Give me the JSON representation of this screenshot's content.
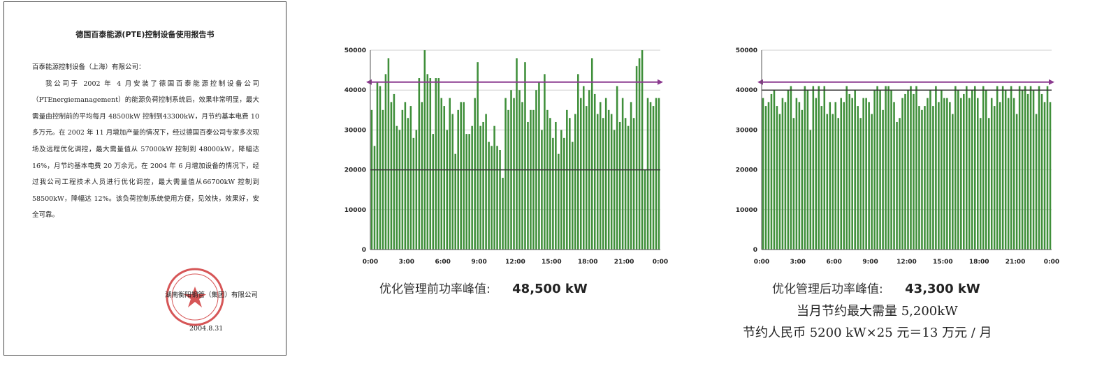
{
  "letter": {
    "title": "德国百泰能源(PTE)控制设备使用报告书",
    "greeting": "百泰能源控制设备（上海）有限公司：",
    "body": "我公司于 2002 年 4 月安装了德国百泰能源控制设备公司（PTEnergiemanagement）的能源负荷控制系统后，效果非常明显，最大需量由控制前的平均每月 48500kW 控制到43300kW，月节约基本电费 10 多万元。在 2002 年 11 月增加产量的情况下，经过德国百泰公司专家多次现场及远程优化调控，最大需量值从 57000kW 控制到 48000kW，降幅达 16%，月节约基本电费 20 万余元。在 2004 年 6 月增加设备的情况下，经过我公司工程技术人员进行优化调控，最大需量值从66700kW 控制到 58500kW，降幅达 12%。该负荷控制系统使用方便，见效快，效果好，安全可靠。",
    "company": "湖南衡阳钢管（集团）有限公司",
    "date": "2004.8.31",
    "seal_color": "#d0393a"
  },
  "captions": {
    "before_label": "优化管理前功率峰值:",
    "before_value": "48,500 kW",
    "after_label": "优化管理后功率峰值:",
    "after_value": "43,300 kW",
    "saving_demand": "当月节约最大需量 5,200kW",
    "saving_rmb": "节约人民币 5200 kW×25 元＝13 万元 / 月"
  },
  "chart_data": [
    {
      "type": "bar",
      "title": "",
      "xlabel": "",
      "ylabel": "",
      "x_tick_labels": [
        "0:00",
        "3:00",
        "6:00",
        "9:00",
        "12:00",
        "15:00",
        "18:00",
        "21:00",
        "0:00"
      ],
      "y_tick_labels": [
        "0",
        "10000",
        "20000",
        "30000",
        "40000",
        "50000"
      ],
      "ylim": [
        0,
        50000
      ],
      "grid": true,
      "bar_color": "#3f8f3a",
      "reference_line": {
        "value": 42000,
        "color": "#8b3a8f"
      },
      "threshold_line": {
        "value": 20000,
        "color": "#333333"
      },
      "values": [
        35000,
        26000,
        42000,
        41000,
        35000,
        44000,
        48000,
        37000,
        39000,
        31000,
        30000,
        35000,
        37000,
        33000,
        36000,
        28000,
        30000,
        43000,
        37000,
        50000,
        44000,
        43000,
        29000,
        43000,
        43000,
        38000,
        36000,
        30000,
        38000,
        34000,
        24000,
        35000,
        37000,
        37000,
        29000,
        29000,
        31000,
        38000,
        47000,
        31000,
        32000,
        34000,
        27000,
        26000,
        31000,
        26000,
        25000,
        18000,
        38000,
        35000,
        40000,
        38000,
        48000,
        40000,
        37000,
        47000,
        32000,
        35000,
        35000,
        40000,
        42000,
        30000,
        44000,
        35000,
        33000,
        28000,
        32000,
        24000,
        30000,
        28000,
        35000,
        33000,
        27000,
        34000,
        44000,
        38000,
        41000,
        36000,
        40000,
        48000,
        39000,
        34000,
        37000,
        33000,
        38000,
        35000,
        34000,
        30000,
        41000,
        32000,
        38000,
        33000,
        31000,
        37000,
        33000,
        46000,
        48000,
        50000,
        20000,
        38000,
        37000,
        36000,
        38000,
        38000
      ]
    },
    {
      "type": "bar",
      "title": "",
      "xlabel": "",
      "ylabel": "",
      "x_tick_labels": [
        "0:00",
        "3:00",
        "6:00",
        "9:00",
        "12:00",
        "15:00",
        "18:00",
        "21:00",
        "0:00"
      ],
      "y_tick_labels": [
        "0",
        "10000",
        "20000",
        "30000",
        "40000",
        "50000"
      ],
      "ylim": [
        0,
        50000
      ],
      "grid": true,
      "bar_color": "#3f8f3a",
      "reference_line": {
        "value": 42000,
        "color": "#8b3a8f"
      },
      "threshold_line": {
        "value": 40000,
        "color": "#333333"
      },
      "values": [
        38000,
        36000,
        37000,
        39000,
        40000,
        36000,
        34000,
        38000,
        37000,
        40000,
        41000,
        33000,
        38000,
        37000,
        35000,
        41000,
        40000,
        30000,
        41000,
        38000,
        41000,
        36000,
        41000,
        34000,
        37000,
        34000,
        37000,
        33000,
        38000,
        37000,
        41000,
        39000,
        38000,
        40000,
        36000,
        33000,
        38000,
        38000,
        37000,
        34000,
        40000,
        41000,
        40000,
        35000,
        41000,
        41000,
        40000,
        37000,
        32000,
        33000,
        38000,
        39000,
        40000,
        41000,
        39000,
        41000,
        36000,
        35000,
        36000,
        38000,
        40000,
        36000,
        41000,
        37000,
        40000,
        38000,
        38000,
        37000,
        34000,
        41000,
        40000,
        38000,
        39000,
        41000,
        38000,
        40000,
        41000,
        38000,
        33000,
        41000,
        40000,
        33000,
        38000,
        36000,
        41000,
        37000,
        41000,
        40000,
        38000,
        41000,
        38000,
        34000,
        41000,
        40000,
        41000,
        39000,
        41000,
        40000,
        34000,
        41000,
        39000,
        37000,
        41000,
        37000
      ]
    }
  ]
}
